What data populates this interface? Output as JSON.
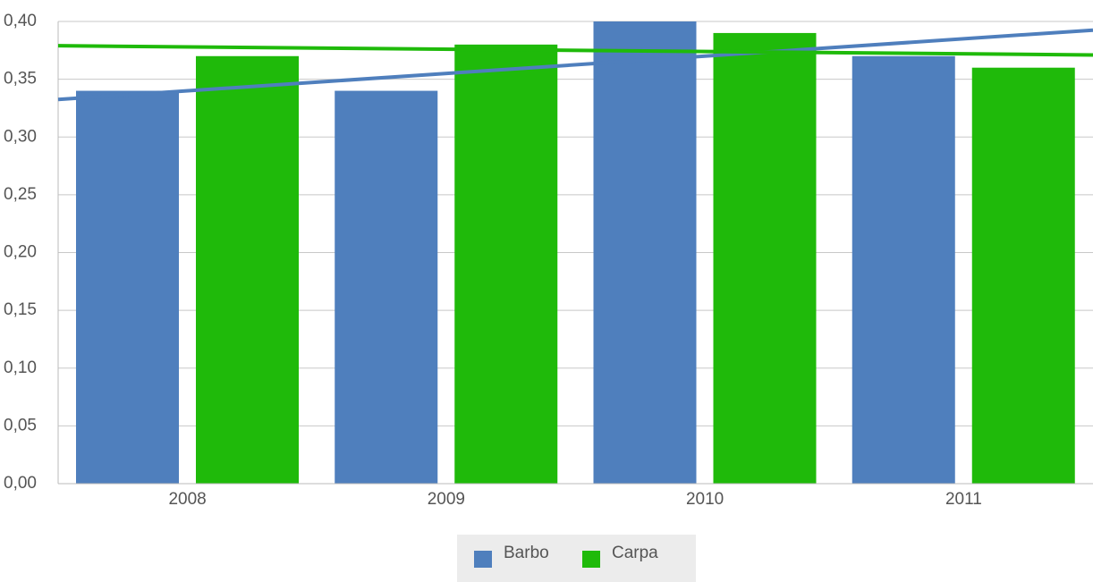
{
  "chart_data": {
    "type": "bar",
    "categories": [
      "2008",
      "2009",
      "2010",
      "2011"
    ],
    "series": [
      {
        "name": "Barbo",
        "color": "#4f7fbd",
        "values": [
          0.34,
          0.34,
          0.4,
          0.37
        ]
      },
      {
        "name": "Carpa",
        "color": "#1fba0a",
        "values": [
          0.37,
          0.38,
          0.39,
          0.36
        ]
      }
    ],
    "trendline": true,
    "ylim": [
      0,
      0.4
    ],
    "yticks": [
      {
        "value": 0,
        "label": "0,00"
      },
      {
        "value": 0.05,
        "label": "0,05"
      },
      {
        "value": 0.1,
        "label": "0,10"
      },
      {
        "value": 0.15,
        "label": "0,15"
      },
      {
        "value": 0.2,
        "label": "0,20"
      },
      {
        "value": 0.25,
        "label": "0,25"
      },
      {
        "value": 0.3,
        "label": "0,30"
      },
      {
        "value": 0.35,
        "label": "0,35"
      },
      {
        "value": 0.4,
        "label": "0,40"
      }
    ],
    "grid": true,
    "legend": "bottom"
  }
}
